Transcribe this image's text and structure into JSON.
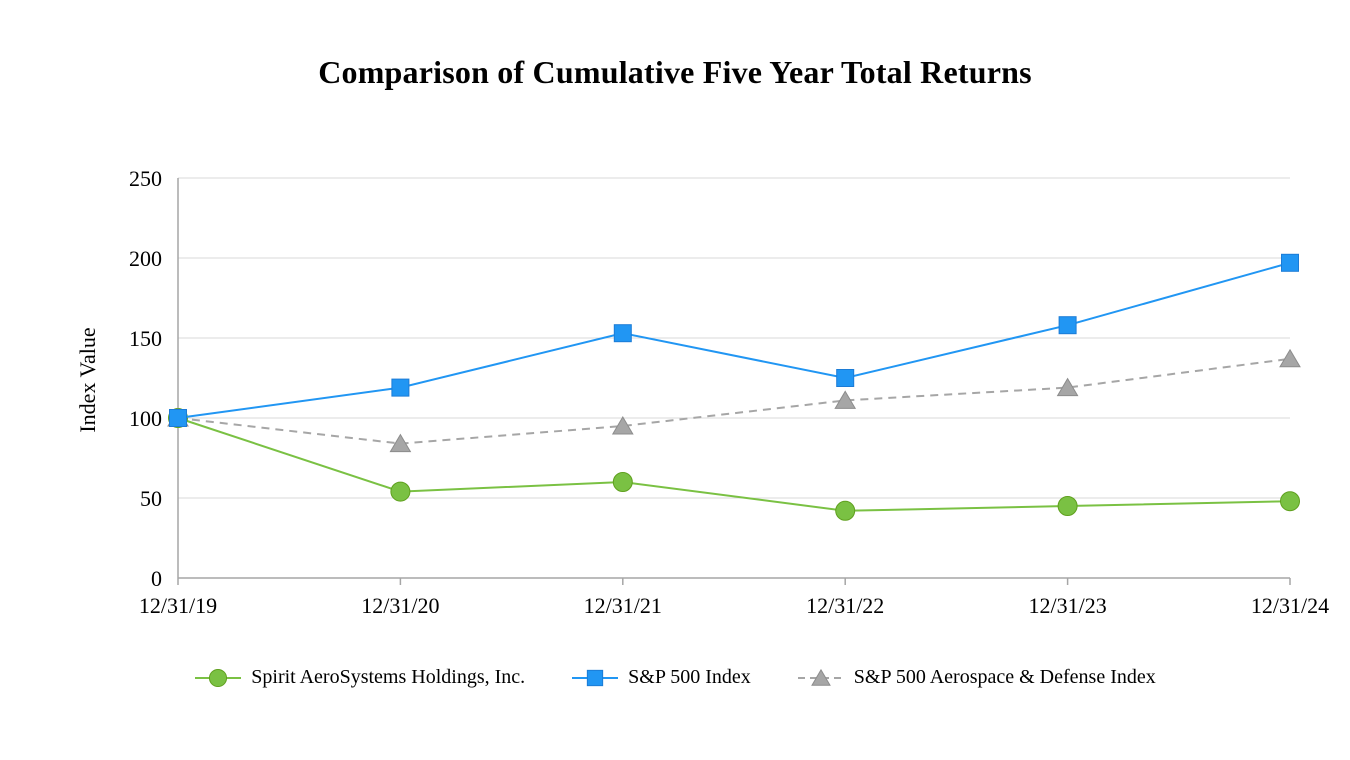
{
  "page": {
    "background": "#ffffff"
  },
  "chart_data": {
    "type": "line",
    "title": "Comparison of Cumulative Five Year Total Returns",
    "xlabel": "",
    "ylabel": "Index Value",
    "x_categories": [
      "12/31/19",
      "12/31/20",
      "12/31/21",
      "12/31/22",
      "12/31/23",
      "12/31/24"
    ],
    "y_ticks": [
      0,
      50,
      100,
      150,
      200,
      250
    ],
    "ylim": [
      0,
      250
    ],
    "grid": true,
    "legend_position": "bottom",
    "colors": {
      "grid": "#D9D9D9",
      "axis": "#A6A6A6",
      "tick_text": "#000000"
    },
    "series": [
      {
        "name": "Spirit AeroSystems Holdings, Inc.",
        "marker": "circle",
        "line_style": "solid",
        "color": "#7AC143",
        "marker_stroke": "#5FA01E",
        "values": [
          100,
          54,
          60,
          42,
          45,
          48
        ]
      },
      {
        "name": "S&P 500 Index",
        "marker": "square",
        "line_style": "solid",
        "color": "#2196F3",
        "marker_stroke": "#1C7CD6",
        "values": [
          100,
          119,
          153,
          125,
          158,
          197
        ]
      },
      {
        "name": "S&P 500 Aerospace & Defense Index",
        "marker": "triangle",
        "line_style": "dashed",
        "color": "#A6A6A6",
        "marker_stroke": "#8C8C8C",
        "values": [
          100,
          84,
          95,
          111,
          119,
          137
        ]
      }
    ]
  }
}
